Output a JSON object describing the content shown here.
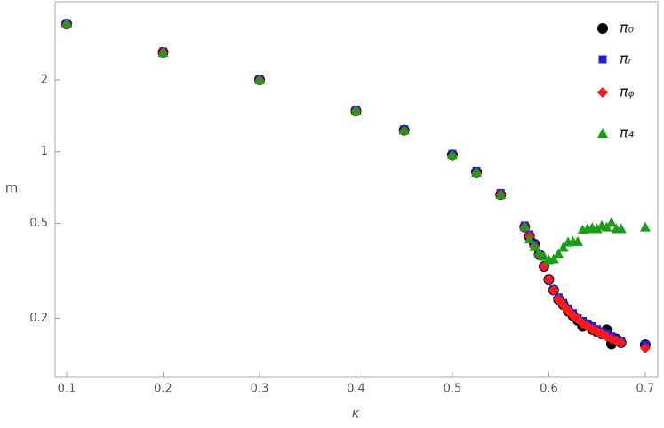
{
  "chart_data": {
    "type": "scatter",
    "x_label": "κ",
    "y_label": "m",
    "x": [
      0.1,
      0.2,
      0.3,
      0.4,
      0.45,
      0.5,
      0.525,
      0.55,
      0.575,
      0.58,
      0.585,
      0.59,
      0.595,
      0.6,
      0.605,
      0.61,
      0.615,
      0.62,
      0.625,
      0.63,
      0.635,
      0.64,
      0.645,
      0.65,
      0.655,
      0.66,
      0.665,
      0.67,
      0.675,
      0.7
    ],
    "series": [
      {
        "name": "π₀",
        "color": "#000000",
        "marker": "circle",
        "values": [
          3.43,
          2.61,
          2.0,
          1.48,
          1.23,
          0.97,
          0.82,
          0.66,
          0.483,
          0.44,
          0.41,
          0.37,
          0.33,
          0.29,
          0.263,
          0.24,
          0.228,
          0.214,
          0.205,
          0.196,
          0.185,
          0.188,
          0.18,
          0.176,
          0.172,
          0.179,
          0.156,
          0.164,
          0.158,
          0.155
        ]
      },
      {
        "name": "πᵣ",
        "color": "#1f1fe0",
        "marker": "square",
        "values": [
          3.45,
          2.63,
          2.01,
          1.5,
          1.24,
          0.98,
          0.83,
          0.67,
          0.49,
          0.45,
          0.41,
          0.37,
          0.33,
          0.29,
          0.265,
          0.245,
          0.232,
          0.22,
          0.21,
          0.2,
          0.195,
          0.19,
          0.185,
          0.18,
          0.176,
          0.172,
          0.168,
          0.164,
          0.16,
          0.155
        ]
      },
      {
        "name": "πᵩ",
        "color": "#ff1a1a",
        "marker": "diamond",
        "values": [
          3.42,
          2.6,
          1.99,
          1.48,
          1.22,
          0.96,
          0.81,
          0.66,
          0.48,
          0.44,
          0.4,
          0.37,
          0.33,
          0.29,
          0.262,
          0.24,
          0.227,
          0.215,
          0.205,
          0.198,
          0.19,
          0.185,
          0.18,
          0.176,
          0.172,
          0.168,
          0.164,
          0.161,
          0.158,
          0.15
        ]
      },
      {
        "name": "π₄",
        "color": "#1a9e1a",
        "marker": "triangle",
        "values": [
          3.45,
          2.6,
          2.0,
          1.49,
          1.23,
          0.97,
          0.82,
          0.66,
          0.485,
          0.43,
          0.4,
          0.377,
          0.364,
          0.352,
          0.355,
          0.373,
          0.397,
          0.418,
          0.42,
          0.42,
          0.47,
          0.475,
          0.48,
          0.475,
          0.49,
          0.483,
          0.505,
          0.475,
          0.475,
          0.483
        ]
      }
    ],
    "xlim": [
      0.088,
      0.713
    ],
    "xticks": [
      0.1,
      0.2,
      0.3,
      0.4,
      0.5,
      0.6,
      0.7
    ],
    "ylim": [
      0.113,
      4.25
    ],
    "yticks": [
      0.2,
      0.5,
      1,
      2
    ],
    "log_y": true,
    "legend": "top-right"
  }
}
